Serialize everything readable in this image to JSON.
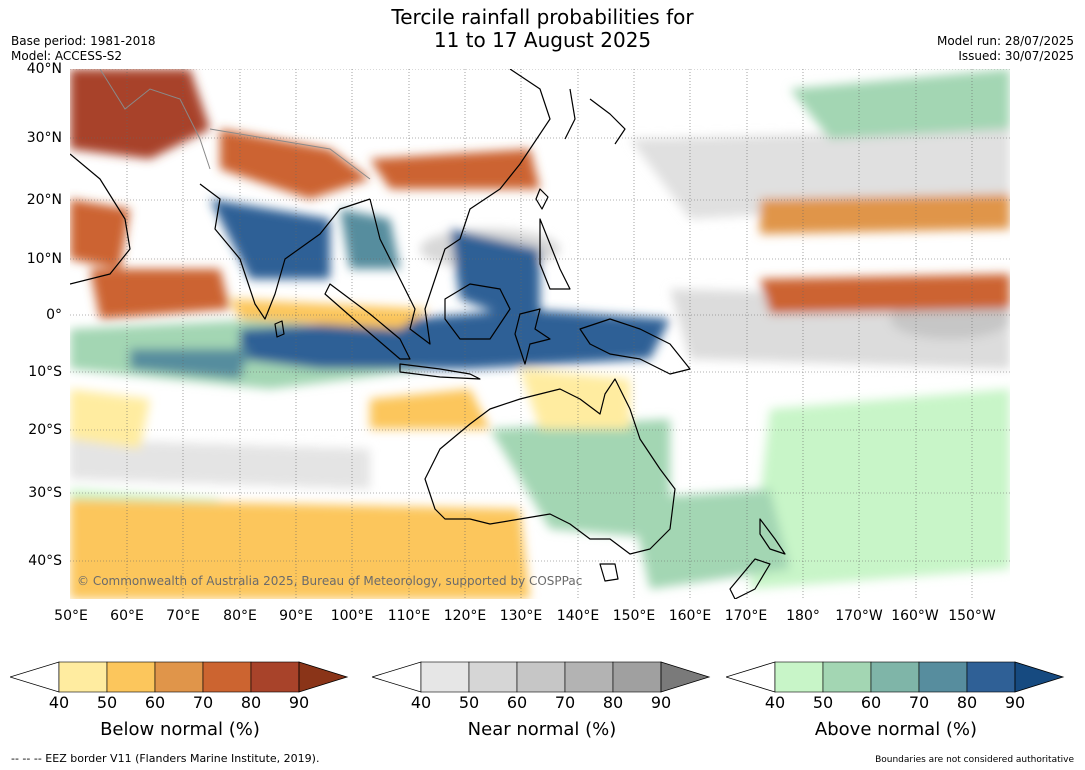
{
  "title": {
    "line1": "Tercile rainfall probabilities for",
    "line2": "11 to 17 August 2025"
  },
  "meta_left": {
    "base_period": "Base period: 1981-2018",
    "model": "Model: ACCESS-S2"
  },
  "meta_right": {
    "model_run": "Model run: 28/07/2025",
    "issued": "Issued: 30/07/2025"
  },
  "axes": {
    "lat_labels": [
      "40°N",
      "30°N",
      "20°N",
      "10°N",
      "0°",
      "10°S",
      "20°S",
      "30°S",
      "40°S"
    ],
    "lon_labels": [
      "50°E",
      "60°E",
      "70°E",
      "80°E",
      "90°E",
      "100°E",
      "110°E",
      "120°E",
      "130°E",
      "140°E",
      "150°E",
      "160°E",
      "170°E",
      "180°",
      "170°W",
      "160°W",
      "150°W"
    ]
  },
  "copyright": "© Commonwealth of Australia 2025, Bureau of Meteorology, supported by COSPPac",
  "colorbars": [
    {
      "title": "Below normal (%)",
      "ticks": [
        "40",
        "50",
        "60",
        "70",
        "80",
        "90"
      ],
      "colors": [
        "#ffeca0",
        "#fcc65c",
        "#e0954a",
        "#cc6430",
        "#a8432a",
        "#8a3418"
      ]
    },
    {
      "title": "Near normal (%)",
      "ticks": [
        "40",
        "50",
        "60",
        "70",
        "80",
        "90"
      ],
      "colors": [
        "#e6e6e6",
        "#d6d6d6",
        "#c6c6c6",
        "#b3b3b3",
        "#a0a0a0",
        "#7a7a7a"
      ]
    },
    {
      "title": "Above normal (%)",
      "ticks": [
        "40",
        "50",
        "60",
        "70",
        "80",
        "90"
      ],
      "colors": [
        "#c8f5c8",
        "#a3d6b3",
        "#7fb5a8",
        "#578d9e",
        "#2f6096",
        "#164a80"
      ]
    }
  ],
  "footer": {
    "eez": "--  --  -- EEZ border V11 (Flanders Marine Institute, 2019).",
    "disclaimer": "Boundaries are not considered authoritative"
  }
}
